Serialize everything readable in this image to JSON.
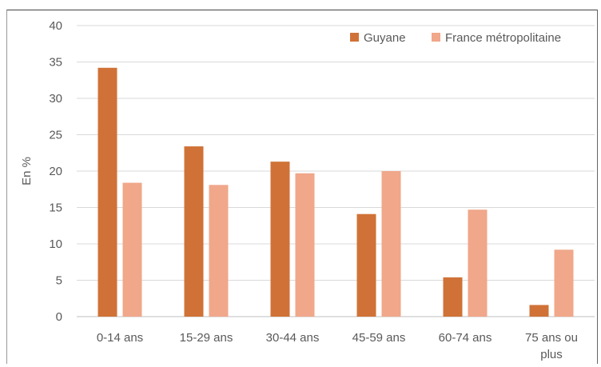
{
  "chart_data": {
    "type": "bar",
    "title": "",
    "xlabel": "",
    "ylabel": "En %",
    "ylim": [
      0,
      40
    ],
    "yticks": [
      0,
      5,
      10,
      15,
      20,
      25,
      30,
      35,
      40
    ],
    "grid": true,
    "legend_position": "top-right",
    "categories": [
      [
        "0-14 ans"
      ],
      [
        "15-29 ans"
      ],
      [
        "30-44 ans"
      ],
      [
        "45-59 ans"
      ],
      [
        "60-74 ans"
      ],
      [
        "75 ans ou",
        "plus"
      ]
    ],
    "series": [
      {
        "name": "Guyane",
        "color": "#d07237",
        "values": [
          34.2,
          23.4,
          21.3,
          14.1,
          5.4,
          1.6
        ]
      },
      {
        "name": "France métropolitaine",
        "color": "#f0a78a",
        "values": [
          18.4,
          18.1,
          19.7,
          20.0,
          14.7,
          9.2
        ]
      }
    ]
  }
}
